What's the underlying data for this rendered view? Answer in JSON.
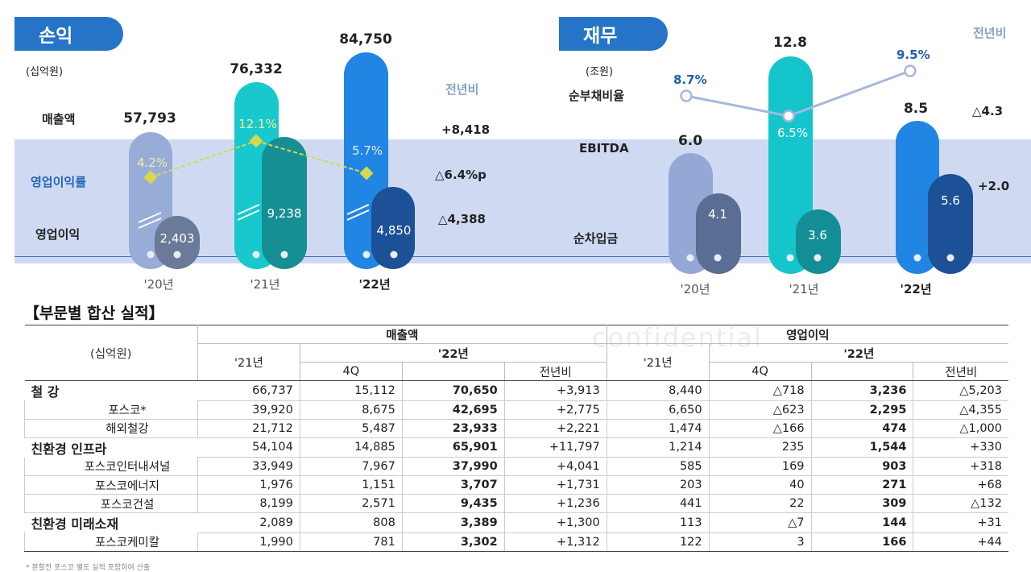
{
  "sections": {
    "pl_title": "손익",
    "fin_title": "재무"
  },
  "pl": {
    "unit": "(십억원)",
    "labels": {
      "revenue": "매출액",
      "margin": "영업이익률",
      "op_profit": "영업이익"
    },
    "years": [
      "'20년",
      "'21년",
      "'22년"
    ],
    "yoy_label": "전년비",
    "revenue_values": [
      "57,793",
      "76,332",
      "84,750"
    ],
    "margin_values": [
      "4.2%",
      "12.1%",
      "5.7%"
    ],
    "op_values": [
      "2,403",
      "9,238",
      "4,850"
    ],
    "yoy": {
      "revenue": "+8,418",
      "margin": "△6.4%p",
      "op": "△4,388"
    },
    "colors": {
      "y20": "#98acd8",
      "y21": "#18c8cd",
      "y22": "#2186e3",
      "op20": "#6b7a98",
      "op21": "#158f93",
      "op22": "#1c5097",
      "margin_line": "#d8d94a"
    }
  },
  "fin": {
    "unit": "(조원)",
    "labels": {
      "net_debt_ratio": "순부채비율",
      "ebitda": "EBITDA",
      "net_borrowings": "순차입금"
    },
    "years": [
      "'20년",
      "'21년",
      "'22년"
    ],
    "yoy_label": "전년비",
    "ebitda_values": [
      "6.0",
      "12.8",
      "8.5"
    ],
    "net_borrowings_values": [
      "4.1",
      "3.6",
      "5.6"
    ],
    "ratio_values": [
      "8.7%",
      "6.5%",
      "9.5%"
    ],
    "yoy": {
      "ebitda": "△4.3",
      "net_borrowings": "+2.0"
    },
    "colors": {
      "y20": "#94a8d6",
      "y21": "#14c6cc",
      "y22": "#2186e3",
      "nb20": "#5a6d92",
      "nb21": "#128e94",
      "nb22": "#1c5097",
      "ratio_line": "#a7b7dd"
    }
  },
  "chart_data": [
    {
      "type": "bar",
      "title": "손익",
      "ylabel": "(십억원)",
      "categories": [
        "'20년",
        "'21년",
        "'22년"
      ],
      "series": [
        {
          "name": "매출액",
          "values": [
            57793,
            76332,
            84750
          ]
        },
        {
          "name": "영업이익",
          "values": [
            2403,
            9238,
            4850
          ]
        },
        {
          "name": "영업이익률",
          "type": "line",
          "values": [
            4.2,
            12.1,
            5.7
          ],
          "unit": "%"
        }
      ]
    },
    {
      "type": "bar",
      "title": "재무",
      "ylabel": "(조원)",
      "categories": [
        "'20년",
        "'21년",
        "'22년"
      ],
      "series": [
        {
          "name": "EBITDA",
          "values": [
            6.0,
            12.8,
            8.5
          ]
        },
        {
          "name": "순차입금",
          "values": [
            4.1,
            3.6,
            5.6
          ]
        },
        {
          "name": "순부채비율",
          "type": "line",
          "values": [
            8.7,
            6.5,
            9.5
          ],
          "unit": "%"
        }
      ]
    }
  ],
  "watermark": {
    "text": "confidential"
  },
  "table": {
    "title": "【부문별 합산 실적】",
    "unit": "(십억원)",
    "group_headers": {
      "revenue": "매출액",
      "op": "영업이익"
    },
    "col_headers": {
      "y21": "'21년",
      "y22": "'22년",
      "q4": "4Q",
      "yoy": "전년비"
    },
    "rows": [
      {
        "name": "철 강",
        "level": 0,
        "rev21": "66,737",
        "rev4q": "15,112",
        "rev22": "70,650",
        "revyoy": "+3,913",
        "op21": "8,440",
        "op4q": "△718",
        "op22": "3,236",
        "opyoy": "△5,203"
      },
      {
        "name": "포스코*",
        "level": 1,
        "rev21": "39,920",
        "rev4q": "8,675",
        "rev22": "42,695",
        "revyoy": "+2,775",
        "op21": "6,650",
        "op4q": "△623",
        "op22": "2,295",
        "opyoy": "△4,355"
      },
      {
        "name": "해외철강",
        "level": 1,
        "rev21": "21,712",
        "rev4q": "5,487",
        "rev22": "23,933",
        "revyoy": "+2,221",
        "op21": "1,474",
        "op4q": "△166",
        "op22": "474",
        "opyoy": "△1,000"
      },
      {
        "name": "친환경 인프라",
        "level": 0,
        "rev21": "54,104",
        "rev4q": "14,885",
        "rev22": "65,901",
        "revyoy": "+11,797",
        "op21": "1,214",
        "op4q": "235",
        "op22": "1,544",
        "opyoy": "+330"
      },
      {
        "name": "포스코인터내셔널",
        "level": 1,
        "rev21": "33,949",
        "rev4q": "7,967",
        "rev22": "37,990",
        "revyoy": "+4,041",
        "op21": "585",
        "op4q": "169",
        "op22": "903",
        "opyoy": "+318"
      },
      {
        "name": "포스코에너지",
        "level": 1,
        "rev21": "1,976",
        "rev4q": "1,151",
        "rev22": "3,707",
        "revyoy": "+1,731",
        "op21": "203",
        "op4q": "40",
        "op22": "271",
        "opyoy": "+68"
      },
      {
        "name": "포스코건설",
        "level": 1,
        "rev21": "8,199",
        "rev4q": "2,571",
        "rev22": "9,435",
        "revyoy": "+1,236",
        "op21": "441",
        "op4q": "22",
        "op22": "309",
        "opyoy": "△132"
      },
      {
        "name": "친환경 미래소재",
        "level": 0,
        "rev21": "2,089",
        "rev4q": "808",
        "rev22": "3,389",
        "revyoy": "+1,300",
        "op21": "113",
        "op4q": "△7",
        "op22": "144",
        "opyoy": "+31"
      },
      {
        "name": "포스코케미칼",
        "level": 1,
        "rev21": "1,990",
        "rev4q": "781",
        "rev22": "3,302",
        "revyoy": "+1,312",
        "op21": "122",
        "op4q": "3",
        "op22": "166",
        "opyoy": "+44"
      }
    ]
  },
  "footnote": "* 분할전 포스코 별도 실적 포함하여 산출"
}
